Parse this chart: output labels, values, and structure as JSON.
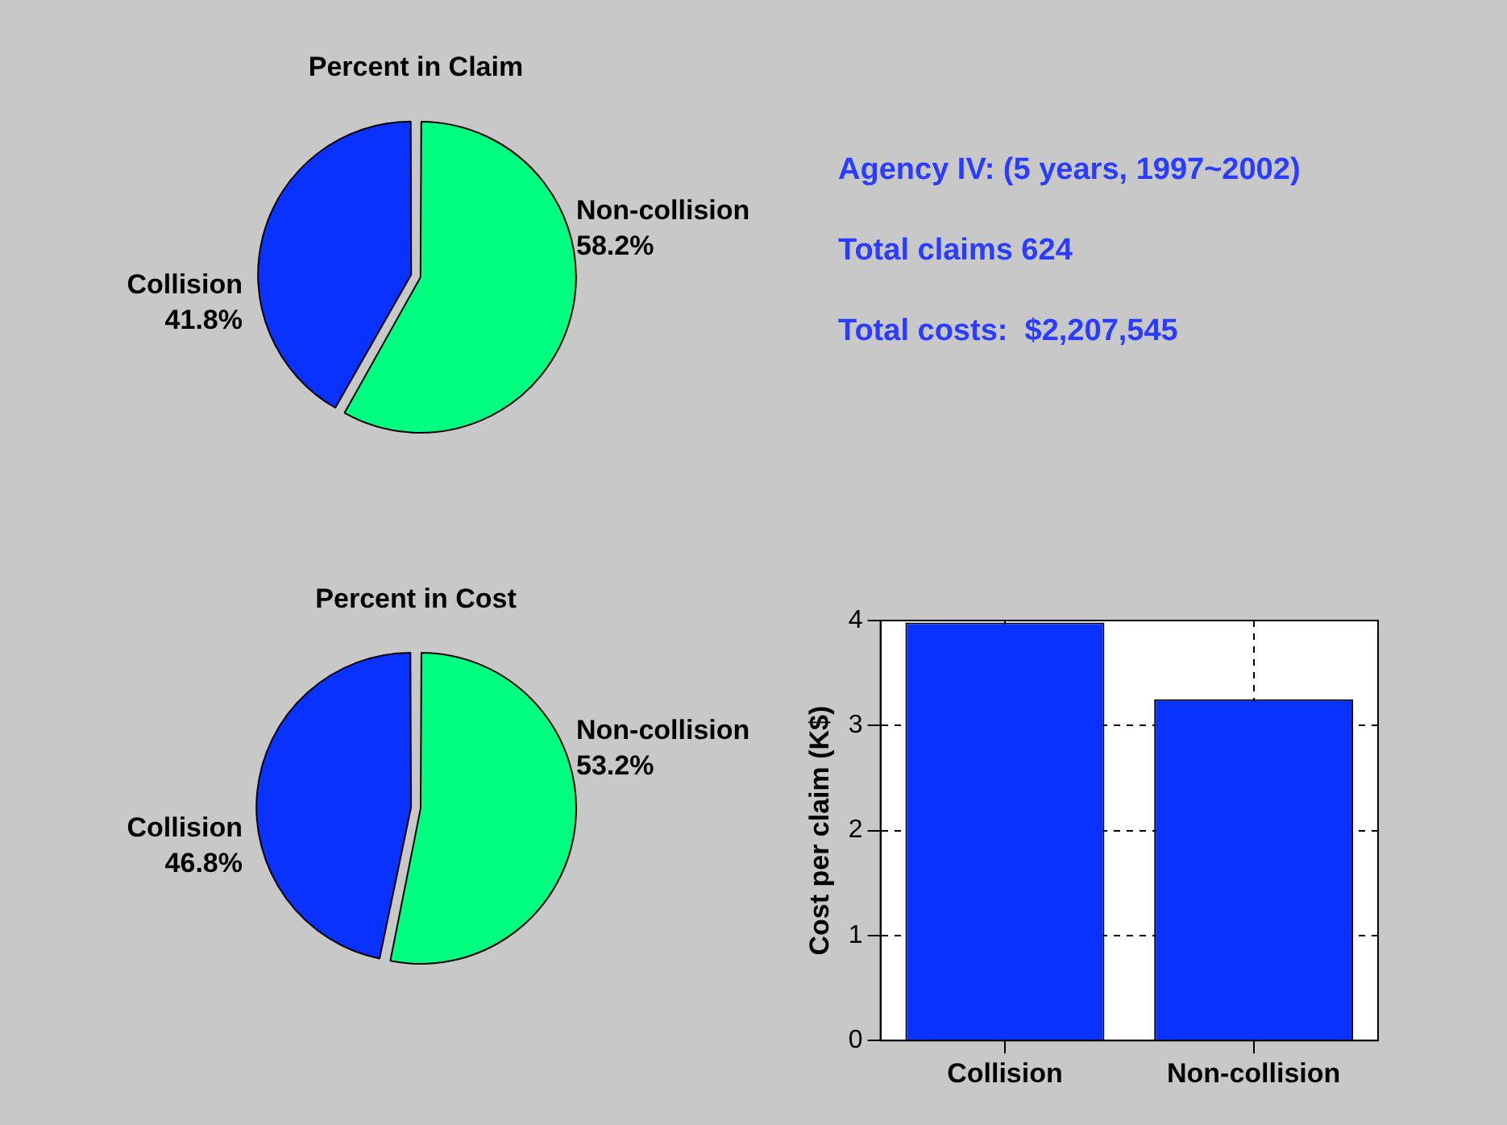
{
  "chart_data": [
    {
      "type": "pie",
      "title": "Percent in Claim",
      "categories": [
        "Collision",
        "Non-collision"
      ],
      "values": [
        41.8,
        58.2
      ],
      "value_labels": [
        "41.8%",
        "58.2%"
      ],
      "colors": [
        "#0a32ff",
        "#00ff80"
      ],
      "legend": false
    },
    {
      "type": "other",
      "annotations": [
        "Agency IV: (5 years, 1997~2002)",
        "Total claims 624",
        "Total costs:  $2,207,545"
      ],
      "color": "#2a3cff"
    },
    {
      "type": "pie",
      "title": "Percent in Cost",
      "categories": [
        "Collision",
        "Non-collision"
      ],
      "values": [
        46.8,
        53.2
      ],
      "value_labels": [
        "46.8%",
        "53.2%"
      ],
      "colors": [
        "#0a32ff",
        "#00ff80"
      ],
      "legend": false
    },
    {
      "type": "bar",
      "categories": [
        "Collision",
        "Non-collision"
      ],
      "values": [
        3.98,
        3.25
      ],
      "color": "#0a32ff",
      "ylabel": "Cost per claim (K$)",
      "ylim": [
        0,
        4
      ],
      "yticks": [
        0,
        1,
        2,
        3,
        4
      ],
      "grid": true,
      "legend": false
    }
  ]
}
